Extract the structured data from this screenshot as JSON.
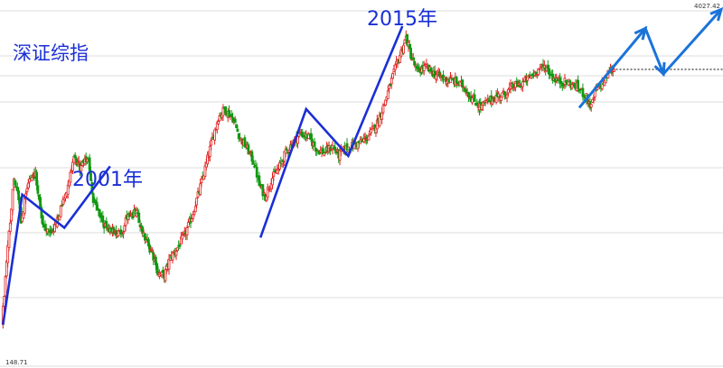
{
  "chart_data": {
    "type": "candlestick",
    "title": "深证综指",
    "log_scale": true,
    "grid": true,
    "ylim": [
      100,
      4200
    ],
    "price_labels": {
      "high": "4027.42",
      "low": "148.71"
    },
    "annotations": [
      {
        "text": "2001年"
      },
      {
        "text": "2015年"
      }
    ],
    "colors": {
      "up": "#e02020",
      "down": "#119911",
      "wave": "#1a2fd6",
      "projection": "#1a73d9",
      "grid": "#dcdcdc",
      "current_price": "#222222"
    },
    "anchors": [
      [
        0,
        148.71
      ],
      [
        5,
        330
      ],
      [
        10,
        700
      ],
      [
        13,
        580
      ],
      [
        16,
        440
      ],
      [
        23,
        700
      ],
      [
        28,
        720
      ],
      [
        34,
        430
      ],
      [
        40,
        380
      ],
      [
        45,
        420
      ],
      [
        52,
        560
      ],
      [
        60,
        830
      ],
      [
        66,
        770
      ],
      [
        72,
        860
      ],
      [
        75,
        570
      ],
      [
        85,
        420
      ],
      [
        100,
        380
      ],
      [
        105,
        480
      ],
      [
        112,
        470
      ],
      [
        120,
        360
      ],
      [
        125,
        310
      ],
      [
        130,
        255
      ],
      [
        135,
        248
      ],
      [
        140,
        300
      ],
      [
        145,
        325
      ],
      [
        152,
        380
      ],
      [
        158,
        460
      ],
      [
        164,
        600
      ],
      [
        170,
        800
      ],
      [
        175,
        1040
      ],
      [
        180,
        1300
      ],
      [
        185,
        1420
      ],
      [
        192,
        1290
      ],
      [
        198,
        1050
      ],
      [
        204,
        940
      ],
      [
        210,
        800
      ],
      [
        214,
        640
      ],
      [
        219,
        570
      ],
      [
        224,
        680
      ],
      [
        230,
        760
      ],
      [
        236,
        900
      ],
      [
        242,
        1000
      ],
      [
        248,
        1100
      ],
      [
        255,
        1060
      ],
      [
        262,
        930
      ],
      [
        268,
        900
      ],
      [
        275,
        960
      ],
      [
        280,
        875
      ],
      [
        285,
        935
      ],
      [
        290,
        960
      ],
      [
        298,
        1000
      ],
      [
        305,
        1070
      ],
      [
        312,
        1230
      ],
      [
        318,
        1500
      ],
      [
        325,
        2000
      ],
      [
        332,
        2600
      ],
      [
        336,
        3000
      ],
      [
        340,
        2500
      ],
      [
        345,
        2100
      ],
      [
        352,
        2200
      ],
      [
        360,
        2050
      ],
      [
        368,
        1950
      ],
      [
        376,
        1900
      ],
      [
        384,
        1800
      ],
      [
        390,
        1600
      ],
      [
        398,
        1450
      ],
      [
        405,
        1550
      ],
      [
        411,
        1620
      ],
      [
        418,
        1660
      ],
      [
        425,
        1800
      ],
      [
        432,
        1850
      ],
      [
        440,
        2000
      ],
      [
        446,
        2150
      ],
      [
        452,
        2220
      ],
      [
        458,
        1980
      ],
      [
        463,
        1900
      ],
      [
        470,
        1870
      ],
      [
        478,
        1790
      ],
      [
        485,
        1640
      ],
      [
        490,
        1440
      ],
      [
        493,
        1700
      ],
      [
        497,
        1800
      ],
      [
        501,
        1900
      ],
      [
        505,
        2120
      ],
      [
        509,
        2150
      ]
    ],
    "wave_2001": [
      [
        1,
        148.71
      ],
      [
        17,
        580
      ],
      [
        52,
        410
      ],
      [
        90,
        780
      ]
    ],
    "wave_2015": [
      [
        215,
        370
      ],
      [
        253,
        1420
      ],
      [
        288,
        870
      ],
      [
        333,
        3380
      ]
    ],
    "projection": [
      [
        480,
        1440
      ],
      [
        535,
        3300
      ],
      [
        550,
        2050
      ],
      [
        598,
        4027.42
      ]
    ],
    "current_price": 2150
  }
}
